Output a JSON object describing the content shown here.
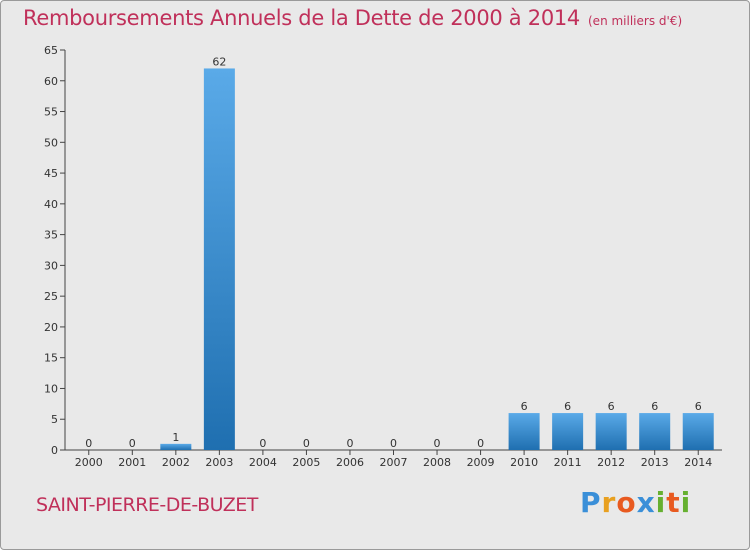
{
  "header": {
    "title": "Remboursements Annuels de la Dette de 2000 à 2014",
    "subtitle": "(en milliers d'€)"
  },
  "footer": {
    "commune": "SAINT-PIERRE-DE-BUZET",
    "logo": {
      "letters": [
        "P",
        "r",
        "o",
        "x",
        "i",
        "t",
        "i"
      ],
      "colors": [
        "#3a8fd8",
        "#e8a020",
        "#e85a20",
        "#3a8fd8",
        "#66b030",
        "#e85a20",
        "#66b030"
      ]
    }
  },
  "chart_data": {
    "type": "bar",
    "title": "Remboursements Annuels de la Dette de 2000 à 2014",
    "subtitle": "(en milliers d'€)",
    "categories": [
      "2000",
      "2001",
      "2002",
      "2003",
      "2004",
      "2005",
      "2006",
      "2007",
      "2008",
      "2009",
      "2010",
      "2011",
      "2012",
      "2013",
      "2014"
    ],
    "values": [
      0,
      0,
      1,
      62,
      0,
      0,
      0,
      0,
      0,
      0,
      6,
      6,
      6,
      6,
      6
    ],
    "ylim": [
      0,
      65
    ],
    "yticks": [
      0,
      5,
      10,
      15,
      20,
      25,
      30,
      35,
      40,
      45,
      50,
      55,
      60,
      65
    ],
    "grid": false,
    "colors": {
      "bar_light": "#5aaae8",
      "bar_dark": "#1f6fb0",
      "axis": "#444444"
    }
  }
}
